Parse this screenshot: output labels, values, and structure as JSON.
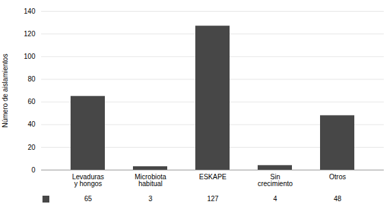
{
  "chart_data": {
    "type": "bar",
    "categories": [
      "Levaduras\ny hongos",
      "Microbiota\nhabitual",
      "ESKAPE",
      "Sin\ncrecimiento",
      "Otros"
    ],
    "values": [
      65,
      3,
      127,
      4,
      48
    ],
    "color": "#474747",
    "ylabel": "Número de aislamientos",
    "ylim": [
      0,
      140
    ],
    "yticks": [
      0,
      20,
      40,
      60,
      80,
      100,
      120,
      140
    ],
    "grid": true,
    "data_labels": true
  }
}
